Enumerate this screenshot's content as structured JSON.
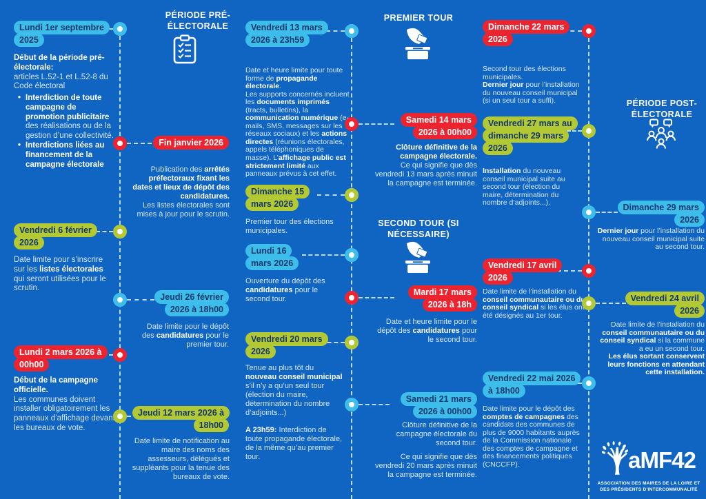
{
  "palette": {
    "background": "#1165c2",
    "badge_cyan": "#3dbdea",
    "badge_red": "#ec2430",
    "badge_green": "#b2c934",
    "badge_dark_text": "#16386e",
    "body_text": "#d5e7f8",
    "bold_text": "#ffffff",
    "dash": "#dfeefa"
  },
  "sections": {
    "pre": {
      "title": "PÉRIODE PRÉ-ÉLECTORALE",
      "icon": "clipboard-checklist-icon"
    },
    "tour1": {
      "title": "PREMIER TOUR",
      "icon": "ballot-box-icon"
    },
    "tour2": {
      "title": "SECOND TOUR (SI NÉCESSAIRE)",
      "icon": "ballot-box-icon"
    },
    "post": {
      "title": "PÉRIODE POST-ÉLECTORALE",
      "icon": "meeting-people-icon"
    }
  },
  "events": {
    "e1": {
      "date": "Lundi 1er septembre 2025",
      "color": "cyan",
      "body": [
        {
          "t": "Début de la période pré-électorale:",
          "b": true
        },
        {
          "nl": true
        },
        {
          "t": "articles L.52-1 et L.52-8 du Code électoral"
        }
      ],
      "bullets": [
        [
          {
            "t": "Interdiction de toute campagne de promotion publicitaire",
            "b": true
          },
          {
            "t": " des réalisations ou de la gestion d’une collectivité."
          }
        ],
        [
          {
            "t": "Interdictions liées au financement de la campagne électorale",
            "b": true
          }
        ]
      ]
    },
    "e2": {
      "date": "Vendredi 6 février 2026",
      "color": "green",
      "body": [
        {
          "t": "Date limite pour s’inscrire sur les "
        },
        {
          "t": "listes électorales",
          "b": true
        },
        {
          "t": " qui seront utilisées pour le scrutin."
        }
      ]
    },
    "e3": {
      "date": "Lundi 2 mars 2026 à 00h00",
      "color": "red",
      "body": [
        {
          "t": "Début de la campagne officielle.",
          "b": true
        },
        {
          "nl": true
        },
        {
          "t": "Les communes doivent installer obligatoirement les panneaux d’affichage devant les bureaux de vote."
        }
      ]
    },
    "e4": {
      "date": "Fin janvier 2026",
      "color": "red",
      "body": [
        {
          "t": "Publication des "
        },
        {
          "t": "arrêtés préfectoraux fixant les dates et lieux de dépôt des candidatures.",
          "b": true
        },
        {
          "nl": true
        },
        {
          "t": "Les listes électorales sont mises à jour pour le scrutin."
        }
      ]
    },
    "e5": {
      "date": "Jeudi 26 février 2026 à 18h00",
      "color": "cyan",
      "body": [
        {
          "t": "Date limite pour le dépôt des "
        },
        {
          "t": "candidatures",
          "b": true
        },
        {
          "t": " pour le premier tour."
        }
      ]
    },
    "e6": {
      "date": "Jeudi 12 mars 2026 à 18h00",
      "color": "green",
      "body": [
        {
          "t": "Date limite de notification au maire des noms des assesseurs, délégués et suppléants pour la tenue des bureaux de vote."
        }
      ]
    },
    "e7": {
      "date": "Vendredi 13 mars 2026 à 23h59",
      "color": "cyan",
      "body": [
        {
          "t": "Date et heure limite pour toute forme de "
        },
        {
          "t": "propagande électorale",
          "b": true
        },
        {
          "t": "."
        },
        {
          "nl": true
        },
        {
          "t": "Les supports concernés incluent les "
        },
        {
          "t": "documents imprimés",
          "b": true
        },
        {
          "t": " (tracts, bulletins), la "
        },
        {
          "t": "communication numérique",
          "b": true
        },
        {
          "t": " (e-mails, SMS, messages sur les réseaux sociaux) et les "
        },
        {
          "t": "actions directes",
          "b": true
        },
        {
          "t": " (réunions électorales, appels téléphoniques de masse). L’"
        },
        {
          "t": "affichage public est strictement limité",
          "b": true
        },
        {
          "t": " aux panneaux prévus à cet effet."
        }
      ]
    },
    "e8": {
      "date": "Dimanche 15 mars 2026",
      "color": "green",
      "body": [
        {
          "t": "Premier tour des élections municipales."
        }
      ]
    },
    "e9": {
      "date": "Lundi 16 mars 2026",
      "color": "cyan",
      "body": [
        {
          "t": "Ouverture du dépôt des "
        },
        {
          "t": "candidatures",
          "b": true
        },
        {
          "t": " pour le second tour."
        }
      ]
    },
    "e10": {
      "date": "Vendredi 20 mars 2026",
      "color": "green",
      "body": [
        {
          "t": "Tenue au plus tôt du "
        },
        {
          "t": "nouveau conseil municipal",
          "b": true
        },
        {
          "t": " s’il n’y a qu’un seul tour (élection du maire, détermination du nombre d’adjoints...)"
        }
      ],
      "body2": [
        {
          "t": "A 23h59:",
          "b": true
        },
        {
          "t": " Interdiction de toute propagande électorale, de la même qu’au premier tour."
        }
      ]
    },
    "e11": {
      "date": "Samedi 14 mars 2026 à 00h00",
      "color": "red",
      "body": [
        {
          "t": "Clôture définitive de la campagne électorale.",
          "b": true
        },
        {
          "nl": true
        },
        {
          "t": "Ce qui signifie que dès vendredi 13 mars après minuit la campagne est terminée."
        }
      ]
    },
    "e12": {
      "date": "Mardi 17 mars 2026 à 18h",
      "color": "red",
      "body": [
        {
          "t": "Date et heure limite pour le dépôt des "
        },
        {
          "t": "candidatures",
          "b": true
        },
        {
          "t": " pour le second tour."
        }
      ]
    },
    "e13": {
      "date": "Samedi 21 mars 2026 à 00h00",
      "color": "cyan",
      "body": [
        {
          "t": "Clôture définitive de la campagne électorale du second tour."
        }
      ],
      "body2": [
        {
          "t": "Ce qui signifie que dès vendredi 20 mars après minuit la campagne est terminée."
        }
      ]
    },
    "e14": {
      "date": "Dimanche 22 mars 2026",
      "color": "red",
      "body": [
        {
          "t": "Second tour des élections municipales."
        },
        {
          "nl": true
        },
        {
          "t": "Dernier jour",
          "b": true
        },
        {
          "t": " pour l’installation du nouveau conseil municipal (si un seul tour a suffi)."
        }
      ]
    },
    "e15": {
      "date": "Vendredi 27 mars au dimanche 29 mars 2026",
      "color": "green",
      "body": [
        {
          "t": "Installation",
          "b": true
        },
        {
          "t": " du nouveau conseil municipal suite au second tour (élection du maire, détermination du nombre d’adjoints...)."
        }
      ]
    },
    "e16": {
      "date": "Vendredi 17 avril 2026",
      "color": "red",
      "body": [
        {
          "t": "Date limite de l’installation du "
        },
        {
          "t": "conseil communautaire ou du conseil syndical",
          "b": true
        },
        {
          "t": " si les élus ont été désignés au 1er tour."
        }
      ]
    },
    "e17": {
      "date": "Vendredi 22 mai 2026 à 18h00",
      "color": "cyan",
      "body": [
        {
          "t": "Date limite pour le dépôt des "
        },
        {
          "t": "comptes de campagnes",
          "b": true
        },
        {
          "t": " des candidats des communes de plus de 9000 habitants auprès de la Commission nationale des comptes de campagne et des financements politiques (CNCCFP)."
        }
      ]
    },
    "e18": {
      "date": "Dimanche 29 mars 2026",
      "color": "cyan",
      "body": [
        {
          "t": "Dernier jour",
          "b": true
        },
        {
          "t": " pour l’installation du nouveau conseil municipal suite au second tour."
        }
      ]
    },
    "e19": {
      "date": "Vendredi 24 avril 2026",
      "color": "green",
      "body": [
        {
          "t": "Date limite de l’installation du "
        },
        {
          "t": "conseil communautaire ou du conseil syndical",
          "b": true
        },
        {
          "t": " si la commune a eu un second tour."
        },
        {
          "nl": true
        },
        {
          "t": "Les élus sortant conservent leurs fonctions en attendant cette installation.",
          "b": true
        }
      ]
    }
  },
  "logo": {
    "name": "aMF42",
    "subtitle": "ASSOCIATION DES MAIRES DE LA LOIRE ET DES PRÉSIDENTS D’INTERCOMMUNALITÉ"
  }
}
